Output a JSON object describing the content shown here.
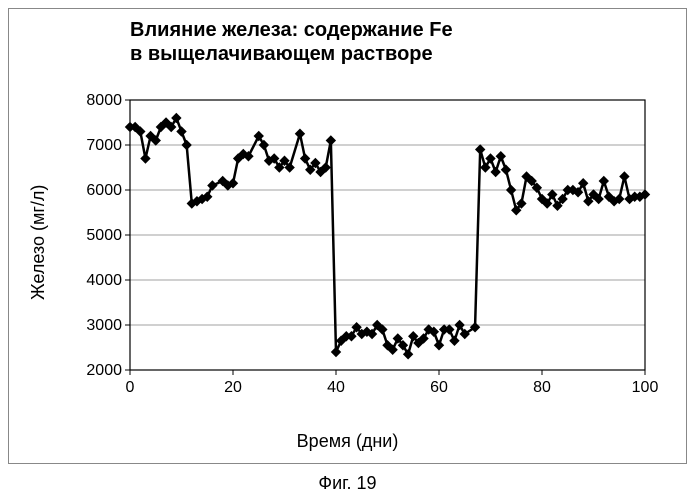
{
  "chart": {
    "type": "line+scatter",
    "title": "Влияние железа: содержание Fe\nв выщелачивающем растворе",
    "xlabel": "Время (дни)",
    "ylabel": "Железо (мг/л)",
    "caption": "Фиг. 19",
    "xlim": [
      0,
      100
    ],
    "ylim": [
      2000,
      8000
    ],
    "xtick_step": 20,
    "ytick_step": 1000,
    "xticks": [
      0,
      20,
      40,
      60,
      80,
      100
    ],
    "yticks": [
      2000,
      3000,
      4000,
      5000,
      6000,
      7000,
      8000
    ],
    "background_color": "#ffffff",
    "plot_background_color": "#ffffff",
    "grid_color": "#808080",
    "axis_color": "#000000",
    "series": {
      "color": "#000000",
      "line_width": 2.5,
      "marker": "diamond",
      "marker_size": 9,
      "marker_color": "#000000",
      "x": [
        0,
        1,
        2,
        3,
        4,
        5,
        6,
        7,
        8,
        9,
        10,
        11,
        12,
        13,
        14,
        15,
        16,
        18,
        19,
        20,
        21,
        22,
        23,
        25,
        26,
        27,
        28,
        29,
        30,
        31,
        33,
        34,
        35,
        36,
        37,
        38,
        39,
        40,
        41,
        42,
        43,
        44,
        45,
        46,
        47,
        48,
        49,
        50,
        51,
        52,
        53,
        54,
        55,
        56,
        57,
        58,
        59,
        60,
        61,
        62,
        63,
        64,
        65,
        67,
        68,
        69,
        70,
        71,
        72,
        73,
        74,
        75,
        76,
        77,
        78,
        79,
        80,
        81,
        82,
        83,
        84,
        85,
        86,
        87,
        88,
        89,
        90,
        91,
        92,
        93,
        94,
        95,
        96,
        97,
        98,
        99,
        100
      ],
      "y": [
        7400,
        7400,
        7300,
        6700,
        7200,
        7100,
        7400,
        7500,
        7400,
        7600,
        7300,
        7000,
        5700,
        5750,
        5800,
        5850,
        6100,
        6200,
        6100,
        6150,
        6700,
        6800,
        6750,
        7200,
        7000,
        6650,
        6700,
        6500,
        6650,
        6500,
        7250,
        6700,
        6450,
        6600,
        6400,
        6500,
        7100,
        2400,
        2650,
        2750,
        2750,
        2950,
        2800,
        2850,
        2800,
        3000,
        2900,
        2550,
        2450,
        2700,
        2550,
        2350,
        2750,
        2600,
        2700,
        2900,
        2850,
        2550,
        2900,
        2900,
        2650,
        3000,
        2800,
        2950,
        6900,
        6500,
        6700,
        6400,
        6750,
        6450,
        6000,
        5550,
        5700,
        6300,
        6200,
        6050,
        5800,
        5700,
        5900,
        5650,
        5800,
        6000,
        6000,
        5950,
        6150,
        5750,
        5900,
        5800,
        6200,
        5850,
        5750,
        5800,
        6300,
        5800,
        5850,
        5850,
        5900
      ]
    },
    "title_fontsize": 20,
    "label_fontsize": 18,
    "tick_fontsize": 16
  }
}
